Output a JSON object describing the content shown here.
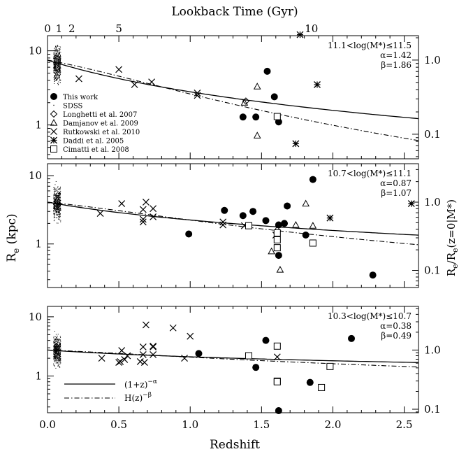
{
  "figure": {
    "top_axis_title": "Lookback Time (Gyr)",
    "top_ticks": [
      {
        "z": 0.0,
        "label": "0"
      },
      {
        "z": 0.08,
        "label": "1"
      },
      {
        "z": 0.17,
        "label": "2"
      },
      {
        "z": 0.5,
        "label": "5"
      },
      {
        "z": 1.85,
        "label": "10"
      }
    ],
    "x_title": "Redshift",
    "y_left_title": "R_e (kpc)",
    "y_right_title": "R_e/R_e(z=0|M*)",
    "x_ticks": [
      {
        "v": 0.0,
        "label": "0.0"
      },
      {
        "v": 0.5,
        "label": "0.5"
      },
      {
        "v": 1.0,
        "label": "1.0"
      },
      {
        "v": 1.5,
        "label": "1.5"
      },
      {
        "v": 2.0,
        "label": "2.0"
      },
      {
        "v": 2.5,
        "label": "2.5"
      }
    ],
    "y_ticks": [
      {
        "v": 1,
        "label": "1"
      },
      {
        "v": 10,
        "label": "10"
      }
    ],
    "legend_entries": [
      {
        "marker": "filled-circle",
        "label": "This work"
      },
      {
        "marker": "dot",
        "label": "SDSS"
      },
      {
        "marker": "diamond",
        "label": "Longhetti et al. 2007"
      },
      {
        "marker": "triangle",
        "label": "Damjanov et al. 2009"
      },
      {
        "marker": "cross",
        "label": "Rutkowski et al. 2010"
      },
      {
        "marker": "asterisk",
        "label": "Daddi et al. 2005"
      },
      {
        "marker": "square",
        "label": "Cimatti et al. 2008"
      }
    ],
    "line_legend": [
      {
        "style": "solid",
        "label": "(1+z)^-α"
      },
      {
        "style": "dashdot",
        "label": "H(z)^-β"
      }
    ]
  },
  "chart_data": [
    {
      "type": "scatter",
      "panel": "top",
      "annotation": [
        "11.1<log(M*)≤11.5",
        "α=1.42",
        "β=1.86"
      ],
      "xlim": [
        0,
        2.6
      ],
      "ylim": [
        0.35,
        16
      ],
      "y_scale": "log",
      "right_ticks": [
        {
          "v": 1.0,
          "label": "1.0"
        },
        {
          "v": 0.1,
          "label": "0.1"
        }
      ],
      "Re_z0": 7.5,
      "alpha": 1.42,
      "beta": 1.86,
      "sdss_cloud": {
        "z_range": [
          0.04,
          0.09
        ],
        "median": 6.8
      },
      "series": [
        {
          "name": "This work",
          "marker": "filled-circle",
          "points": [
            [
              1.37,
              1.28
            ],
            [
              1.46,
              1.28
            ],
            [
              1.54,
              5.3
            ],
            [
              1.59,
              2.4
            ],
            [
              1.62,
              1.1
            ]
          ]
        },
        {
          "name": "Longhetti et al. 2007",
          "marker": "diamond",
          "points": [
            [
              1.39,
              2.1
            ]
          ]
        },
        {
          "name": "Damjanov et al. 2009",
          "marker": "triangle",
          "points": [
            [
              1.38,
              2.0
            ],
            [
              1.47,
              3.3
            ],
            [
              1.47,
              0.72
            ]
          ]
        },
        {
          "name": "Rutkowski et al. 2010",
          "marker": "cross",
          "points": [
            [
              0.22,
              4.2
            ],
            [
              0.5,
              5.6
            ],
            [
              0.61,
              3.5
            ],
            [
              0.73,
              3.8
            ],
            [
              1.05,
              2.5
            ],
            [
              1.05,
              2.7
            ]
          ]
        },
        {
          "name": "Daddi et al. 2005",
          "marker": "asterisk",
          "points": [
            [
              1.77,
              16.5
            ],
            [
              1.89,
              3.5
            ],
            [
              1.74,
              0.56
            ]
          ]
        },
        {
          "name": "Cimatti et al. 2008",
          "marker": "square",
          "points": [
            [
              1.61,
              1.3
            ]
          ]
        }
      ]
    },
    {
      "type": "scatter",
      "panel": "middle",
      "annotation": [
        "10.7<log(M*)≤11.1",
        "α=0.87",
        "β=1.07"
      ],
      "xlim": [
        0,
        2.6
      ],
      "ylim": [
        0.23,
        15
      ],
      "y_scale": "log",
      "right_ticks": [
        {
          "v": 1.0,
          "label": "1.0"
        },
        {
          "v": 0.1,
          "label": "0.1"
        }
      ],
      "Re_z0": 4.1,
      "alpha": 0.87,
      "beta": 1.07,
      "sdss_cloud": {
        "z_range": [
          0.04,
          0.09
        ],
        "median": 3.9
      },
      "series": [
        {
          "name": "This work",
          "marker": "filled-circle",
          "points": [
            [
              0.99,
              1.4
            ],
            [
              1.24,
              3.1
            ],
            [
              1.37,
              2.6
            ],
            [
              1.44,
              3.0
            ],
            [
              1.53,
              2.2
            ],
            [
              1.62,
              1.9
            ],
            [
              1.62,
              0.68
            ],
            [
              1.66,
              2.0
            ],
            [
              1.68,
              3.6
            ],
            [
              1.81,
              1.35
            ],
            [
              1.86,
              8.8
            ],
            [
              2.28,
              0.35
            ]
          ]
        },
        {
          "name": "Damjanov et al. 2009",
          "marker": "triangle",
          "points": [
            [
              1.57,
              0.78
            ],
            [
              1.61,
              1.65
            ],
            [
              1.63,
              0.42
            ],
            [
              1.74,
              1.9
            ],
            [
              1.81,
              3.9
            ],
            [
              1.86,
              1.85
            ]
          ]
        },
        {
          "name": "Rutkowski et al. 2010",
          "marker": "cross",
          "points": [
            [
              0.37,
              2.8
            ],
            [
              0.52,
              3.9
            ],
            [
              0.67,
              2.1
            ],
            [
              0.67,
              2.3
            ],
            [
              0.67,
              3.2
            ],
            [
              0.69,
              4.1
            ],
            [
              0.74,
              2.5
            ],
            [
              0.74,
              3.3
            ],
            [
              1.23,
              1.9
            ],
            [
              1.23,
              2.1
            ],
            [
              1.38,
              1.85
            ],
            [
              1.6,
              1.35
            ]
          ]
        },
        {
          "name": "Daddi et al. 2005",
          "marker": "asterisk",
          "points": [
            [
              1.98,
              2.4
            ],
            [
              2.55,
              3.9
            ]
          ]
        },
        {
          "name": "Cimatti et al. 2008",
          "marker": "square",
          "points": [
            [
              1.41,
              1.85
            ],
            [
              1.61,
              1.45
            ],
            [
              1.61,
              1.15
            ],
            [
              1.61,
              0.88
            ],
            [
              1.86,
              1.03
            ]
          ]
        }
      ]
    },
    {
      "type": "scatter",
      "panel": "bottom",
      "annotation": [
        "10.3<log(M*)≤10.7",
        "α=0.38",
        "β=0.49"
      ],
      "xlim": [
        0,
        2.6
      ],
      "ylim": [
        0.24,
        15
      ],
      "y_scale": "log",
      "right_ticks": [
        {
          "v": 1.0,
          "label": "1.0"
        },
        {
          "v": 0.1,
          "label": "0.1"
        }
      ],
      "Re_z0": 2.75,
      "alpha": 0.38,
      "beta": 0.49,
      "sdss_cloud": {
        "z_range": [
          0.04,
          0.09
        ],
        "median": 2.75
      },
      "series": [
        {
          "name": "This work",
          "marker": "filled-circle",
          "points": [
            [
              1.06,
              2.4
            ],
            [
              1.46,
              1.4
            ],
            [
              1.53,
              4.0
            ],
            [
              1.62,
              0.26
            ],
            [
              1.84,
              0.78
            ],
            [
              2.13,
              4.3
            ]
          ]
        },
        {
          "name": "Rutkowski et al. 2010",
          "marker": "cross",
          "points": [
            [
              0.38,
              2.0
            ],
            [
              0.5,
              1.7
            ],
            [
              0.51,
              1.75
            ],
            [
              0.52,
              2.7
            ],
            [
              0.54,
              1.9
            ],
            [
              0.56,
              2.2
            ],
            [
              0.65,
              1.75
            ],
            [
              0.67,
              2.3
            ],
            [
              0.67,
              3.1
            ],
            [
              0.68,
              1.7
            ],
            [
              0.69,
              7.3
            ],
            [
              0.74,
              2.3
            ],
            [
              0.74,
              3.1
            ],
            [
              0.74,
              3.2
            ],
            [
              0.88,
              6.5
            ],
            [
              0.96,
              2.0
            ],
            [
              1.0,
              4.7
            ],
            [
              1.61,
              2.1
            ]
          ]
        },
        {
          "name": "Cimatti et al. 2008",
          "marker": "square",
          "points": [
            [
              1.41,
              2.2
            ],
            [
              1.61,
              3.2
            ],
            [
              1.61,
              0.82
            ],
            [
              1.61,
              0.8
            ],
            [
              1.92,
              0.64
            ],
            [
              1.98,
              1.45
            ]
          ]
        }
      ]
    }
  ]
}
